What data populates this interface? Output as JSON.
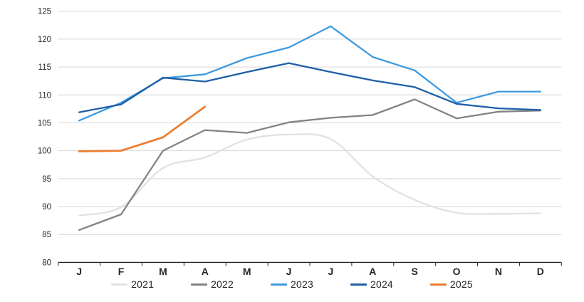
{
  "page": {
    "background_color": "#ffffff"
  },
  "chart_data": {
    "type": "line",
    "title": "",
    "xlabel": "",
    "ylabel": "",
    "categories": [
      "J",
      "F",
      "M",
      "A",
      "M",
      "J",
      "J",
      "A",
      "S",
      "O",
      "N",
      "D"
    ],
    "ylim": [
      80,
      125
    ],
    "ytick_step": 5,
    "ytick_labels": [
      "80",
      "85",
      "90",
      "95",
      "100",
      "105",
      "110",
      "115",
      "120",
      "125"
    ],
    "grid": true,
    "grid_color": "#D6D6D6",
    "axis_color": "#262626",
    "tick_color": "#262626",
    "label_color": "#262626",
    "legend_position": "bottom",
    "series": [
      {
        "name": "2021",
        "color": "#E2E2E2",
        "smooth": true,
        "values": [
          88.4,
          89.9,
          96.9,
          98.8,
          102.0,
          102.9,
          102.1,
          95.4,
          91.2,
          88.9,
          88.7,
          88.8
        ]
      },
      {
        "name": "2022",
        "color": "#838383",
        "smooth": false,
        "values": [
          85.8,
          88.6,
          100.0,
          103.7,
          103.2,
          105.1,
          105.9,
          106.4,
          109.2,
          105.8,
          107.0,
          107.2
        ]
      },
      {
        "name": "2023",
        "color": "#3E9BE0",
        "smooth": false,
        "values": [
          105.4,
          108.6,
          113.0,
          113.7,
          116.6,
          118.5,
          122.3,
          116.8,
          114.4,
          108.6,
          110.6,
          110.6
        ]
      },
      {
        "name": "2024",
        "color": "#1F5FA8",
        "smooth": false,
        "values": [
          106.9,
          108.3,
          113.1,
          112.4,
          114.1,
          115.7,
          114.1,
          112.6,
          111.4,
          108.4,
          107.6,
          107.3
        ]
      },
      {
        "name": "2025",
        "color": "#ED7D31",
        "smooth": false,
        "values": [
          99.9,
          100.0,
          102.4,
          107.9
        ]
      }
    ]
  }
}
